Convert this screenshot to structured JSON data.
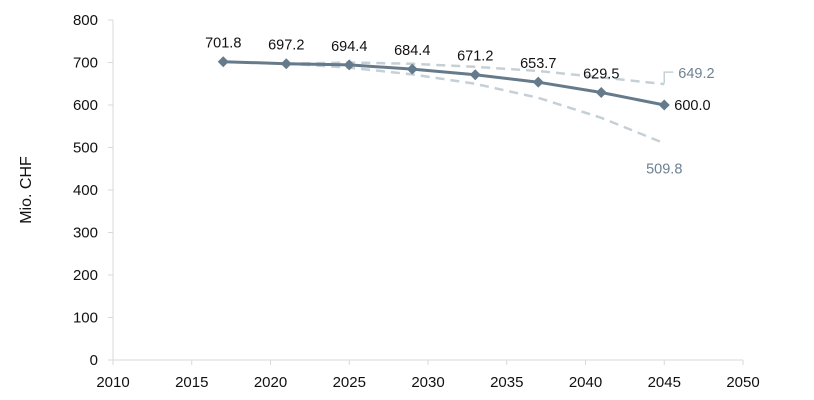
{
  "chart_data": {
    "type": "line",
    "title": "",
    "xlabel": "",
    "ylabel": "Mio. CHF",
    "xlim": [
      2010,
      2050
    ],
    "ylim": [
      0,
      800
    ],
    "xticks": [
      "2010",
      "2015",
      "2020",
      "2025",
      "2030",
      "2035",
      "2040",
      "2045",
      "2050"
    ],
    "yticks": [
      "0",
      "100",
      "200",
      "300",
      "400",
      "500",
      "600",
      "700",
      "800"
    ],
    "grid": false,
    "legend": "none",
    "colors": {
      "main": "#657b8b",
      "scenario": "#c5d0d6",
      "scenario_label": "#6d8191",
      "axis": "#d9d9d9"
    },
    "series": [
      {
        "style": "solid-diamond",
        "x": [
          2017,
          2021,
          2025,
          2029,
          2033,
          2037,
          2041,
          2045
        ],
        "values": [
          701.8,
          697.2,
          694.4,
          684.4,
          671.2,
          653.7,
          629.5,
          600.0
        ],
        "labels": [
          "701.8",
          "697.2",
          "694.4",
          "684.4",
          "671.2",
          "653.7",
          "629.5",
          "600.0"
        ]
      },
      {
        "style": "dashed",
        "x": [
          2021,
          2025,
          2029,
          2033,
          2037,
          2041,
          2045
        ],
        "values": [
          697.2,
          700,
          697,
          690,
          680,
          665,
          649.2
        ],
        "end_label": "649.2"
      },
      {
        "style": "dashed",
        "x": [
          2021,
          2025,
          2029,
          2033,
          2037,
          2041,
          2045
        ],
        "values": [
          697.2,
          688,
          672,
          650,
          617,
          570,
          509.8
        ],
        "end_label": "509.8"
      }
    ]
  }
}
